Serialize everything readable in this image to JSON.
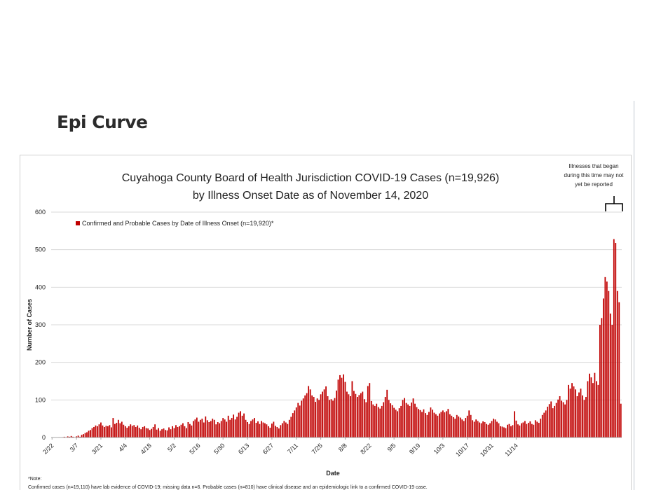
{
  "slide": {
    "title": "Epi Curve"
  },
  "annotation": {
    "lines": [
      "Illnesses that began",
      "during this time may not",
      "yet be reported"
    ]
  },
  "note": {
    "label": "*Note:",
    "text": "Confirmed cases (n=19,110) have lab evidence of COVID-19; missing data n=6. Probable cases (n=810) have clinical disease and an epidemiologic link to a confirmed COVID-19 case."
  },
  "colors": {
    "bar": "#c00000",
    "grid": "#d9d9d9",
    "axis": "#a6a6a6"
  },
  "chart_data": {
    "type": "bar",
    "title": [
      "Cuyahoga County Board of Health Jurisdiction COVID-19 Cases (n=19,926)",
      "by Illness Onset Date as of November 14, 2020"
    ],
    "xlabel": "Date",
    "ylabel": "Number of Cases",
    "ylim": [
      0,
      600
    ],
    "yticks": [
      0,
      100,
      200,
      300,
      400,
      500,
      600
    ],
    "xticks": [
      "2/22",
      "3/7",
      "3/21",
      "4/4",
      "4/18",
      "5/2",
      "5/16",
      "5/30",
      "6/13",
      "6/27",
      "7/11",
      "7/25",
      "8/8",
      "8/22",
      "9/5",
      "9/19",
      "10/3",
      "10/17",
      "10/31",
      "11/14"
    ],
    "grid": true,
    "legend_position": "top-left",
    "series": [
      {
        "name": "Confirmed and Probable Cases by Date of Illness Onset (n=19,920)*",
        "start_date": "2/22",
        "values": [
          0,
          0,
          0,
          0,
          1,
          0,
          1,
          2,
          1,
          3,
          2,
          4,
          2,
          1,
          3,
          5,
          2,
          7,
          9,
          12,
          14,
          18,
          20,
          25,
          28,
          32,
          30,
          35,
          40,
          32,
          28,
          31,
          30,
          33,
          27,
          52,
          36,
          39,
          47,
          38,
          42,
          34,
          30,
          26,
          30,
          35,
          31,
          33,
          28,
          32,
          26,
          22,
          28,
          30,
          25,
          24,
          20,
          23,
          28,
          35,
          21,
          25,
          18,
          22,
          24,
          20,
          19,
          27,
          22,
          30,
          25,
          33,
          28,
          30,
          34,
          38,
          30,
          25,
          41,
          36,
          32,
          44,
          48,
          53,
          42,
          47,
          50,
          40,
          56,
          46,
          41,
          44,
          50,
          47,
          35,
          41,
          38,
          44,
          52,
          48,
          42,
          58,
          47,
          52,
          61,
          48,
          55,
          66,
          70,
          58,
          64,
          47,
          41,
          36,
          44,
          48,
          52,
          39,
          43,
          36,
          44,
          40,
          38,
          35,
          30,
          26,
          37,
          42,
          31,
          28,
          24,
          33,
          38,
          44,
          40,
          36,
          47,
          55,
          65,
          72,
          80,
          92,
          85,
          98,
          104,
          112,
          118,
          137,
          128,
          112,
          108,
          95,
          104,
          100,
          115,
          122,
          128,
          136,
          110,
          100,
          102,
          98,
          105,
          125,
          154,
          166,
          159,
          168,
          148,
          122,
          115,
          110,
          150,
          124,
          116,
          108,
          113,
          118,
          122,
          102,
          94,
          137,
          145,
          97,
          88,
          84,
          90,
          81,
          77,
          84,
          94,
          108,
          127,
          100,
          91,
          86,
          79,
          74,
          70,
          78,
          84,
          100,
          105,
          92,
          88,
          84,
          93,
          104,
          90,
          81,
          76,
          73,
          68,
          75,
          65,
          60,
          68,
          80,
          74,
          66,
          62,
          58,
          64,
          68,
          72,
          67,
          70,
          76,
          62,
          58,
          54,
          50,
          60,
          56,
          53,
          48,
          44,
          52,
          58,
          72,
          60,
          46,
          42,
          48,
          44,
          40,
          38,
          43,
          41,
          36,
          34,
          38,
          44,
          50,
          48,
          42,
          38,
          30,
          29,
          27,
          25,
          34,
          36,
          30,
          33,
          70,
          45,
          35,
          32,
          38,
          40,
          44,
          36,
          39,
          43,
          36,
          34,
          46,
          42,
          39,
          50,
          60,
          66,
          72,
          82,
          89,
          96,
          78,
          84,
          92,
          101,
          110,
          98,
          94,
          88,
          100,
          140,
          130,
          145,
          136,
          128,
          110,
          120,
          130,
          112,
          100,
          108,
          150,
          170,
          160,
          145,
          172,
          150,
          140,
          300,
          318,
          370,
          427,
          415,
          390,
          330,
          300,
          528,
          518,
          390,
          360,
          90
        ]
      }
    ]
  }
}
